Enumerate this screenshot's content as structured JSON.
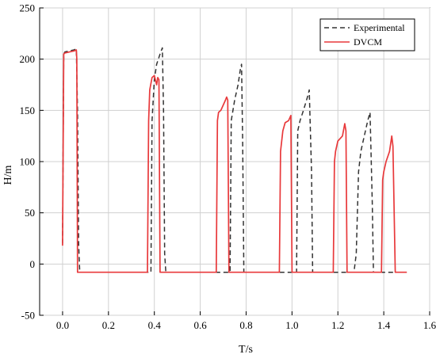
{
  "chart_data": {
    "type": "line",
    "title": "",
    "xlabel": "T/s",
    "ylabel": "H/m",
    "xlim": [
      -0.1,
      1.6
    ],
    "ylim": [
      -50,
      250
    ],
    "xticks": [
      0.0,
      0.2,
      0.4,
      0.6,
      0.8,
      1.0,
      1.2,
      1.4,
      1.6
    ],
    "xtick_labels": [
      "0.0",
      "0.2",
      "0.4",
      "0.6",
      "0.8",
      "1.0",
      "1.2",
      "1.4",
      "1.6"
    ],
    "yticks": [
      -50,
      0,
      50,
      100,
      150,
      200,
      250
    ],
    "ytick_labels": [
      "-50",
      "0",
      "50",
      "100",
      "150",
      "200",
      "250"
    ],
    "grid": true,
    "legend_position": "top-right",
    "series": [
      {
        "name": "Experimental",
        "color": "#333333",
        "style": "dashed",
        "x": [
          0.0,
          0.005,
          0.01,
          0.03,
          0.05,
          0.06,
          0.065,
          0.07,
          0.075,
          0.1,
          0.2,
          0.3,
          0.385,
          0.39,
          0.4,
          0.41,
          0.425,
          0.435,
          0.44,
          0.445,
          0.45,
          0.5,
          0.6,
          0.7,
          0.73,
          0.735,
          0.75,
          0.765,
          0.775,
          0.78,
          0.785,
          0.79,
          0.85,
          0.95,
          1.02,
          1.025,
          1.035,
          1.05,
          1.07,
          1.075,
          1.085,
          1.09,
          1.15,
          1.27,
          1.28,
          1.29,
          1.3,
          1.31,
          1.33,
          1.34,
          1.35,
          1.355,
          1.42,
          1.5
        ],
        "y": [
          20,
          205,
          207,
          208,
          209,
          210,
          150,
          20,
          -8,
          -8,
          -8,
          -8,
          -8,
          140,
          180,
          195,
          205,
          211,
          150,
          10,
          -8,
          -8,
          -8,
          -8,
          -8,
          140,
          160,
          175,
          190,
          195,
          120,
          -8,
          -8,
          -8,
          -8,
          130,
          140,
          150,
          165,
          170,
          90,
          -8,
          -8,
          -8,
          10,
          90,
          110,
          120,
          140,
          148,
          60,
          -8,
          -8,
          -8
        ]
      },
      {
        "name": "DVCM",
        "color": "#e8393b",
        "style": "solid",
        "x": [
          0.0,
          0.005,
          0.01,
          0.03,
          0.05,
          0.06,
          0.062,
          0.065,
          0.1,
          0.2,
          0.3,
          0.37,
          0.375,
          0.38,
          0.39,
          0.4,
          0.41,
          0.415,
          0.42,
          0.425,
          0.5,
          0.6,
          0.67,
          0.675,
          0.68,
          0.69,
          0.7,
          0.71,
          0.715,
          0.72,
          0.725,
          0.8,
          0.9,
          0.945,
          0.95,
          0.96,
          0.97,
          0.985,
          0.995,
          1.0,
          1.1,
          1.18,
          1.185,
          1.19,
          1.2,
          1.22,
          1.23,
          1.235,
          1.24,
          1.3,
          1.39,
          1.395,
          1.4,
          1.41,
          1.425,
          1.435,
          1.44,
          1.45,
          1.5
        ],
        "y": [
          18,
          205,
          206,
          207,
          208,
          209,
          200,
          -8,
          -8,
          -8,
          -8,
          -8,
          140,
          170,
          182,
          184,
          175,
          182,
          180,
          -8,
          -8,
          -8,
          -8,
          140,
          148,
          150,
          155,
          160,
          163,
          160,
          -8,
          -8,
          -8,
          -8,
          110,
          130,
          138,
          140,
          145,
          -8,
          -8,
          -8,
          100,
          110,
          120,
          125,
          137,
          130,
          -8,
          -8,
          -8,
          82,
          90,
          100,
          110,
          125,
          115,
          -8,
          -8
        ]
      }
    ]
  }
}
